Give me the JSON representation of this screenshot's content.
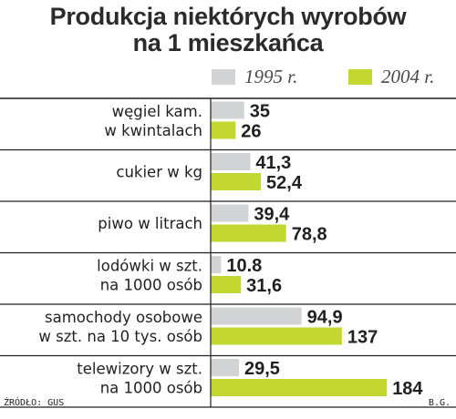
{
  "chart_data": {
    "type": "bar",
    "orientation": "horizontal",
    "title": "Produkcja niektórych wyrobów na 1 mieszkańca",
    "title_lines": [
      "Produkcja niektórych wyrobów",
      "na 1 mieszkańca"
    ],
    "categories": [
      [
        "węgiel kam.",
        "w kwintalach"
      ],
      [
        "cukier w kg"
      ],
      [
        "piwo w litrach"
      ],
      [
        "lodówki w szt.",
        "na 1000 osób"
      ],
      [
        "samochody osobowe",
        "w szt. na 10 tys. osób"
      ],
      [
        "telewizory w szt.",
        "na 1000 osób"
      ]
    ],
    "series": [
      {
        "name": "1995 r.",
        "color": "#d2d3d5",
        "values": [
          35,
          41.3,
          39.4,
          10.8,
          94.9,
          29.5
        ],
        "labels": [
          "35",
          "41,3",
          "39,4",
          "10.8",
          "94,9",
          "29,5"
        ]
      },
      {
        "name": "2004 r.",
        "color": "#c2d730",
        "values": [
          26,
          52.4,
          78.8,
          31.6,
          137,
          184
        ],
        "labels": [
          "26",
          "52,4",
          "78,8",
          "31,6",
          "137",
          "184"
        ]
      }
    ],
    "legend_position": "top-right",
    "grid": false
  },
  "footer": {
    "source": "ŹRÓDŁO: GUS",
    "author": "B.G."
  }
}
